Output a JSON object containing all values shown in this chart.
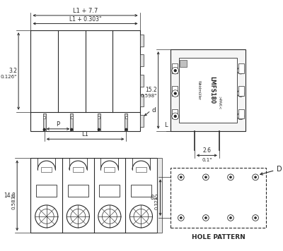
{
  "bg_color": "#ffffff",
  "line_color": "#2a2a2a",
  "top_view": {
    "label_top1": "L1 + 7.7",
    "label_top2": "L1 + 0.303\"",
    "label_left_top": "3.2",
    "label_left_bot": "0.126\"",
    "label_P": "P",
    "label_L1": "L1",
    "label_d": "d"
  },
  "side_view": {
    "label_h1": "15.2",
    "label_h2": "0.598\"",
    "label_w1": "2.6",
    "label_w2": "0.1\"",
    "label_L": "L",
    "brand": "LMFS180"
  },
  "bottom_view": {
    "label_h1": "14.8",
    "label_h2": "0.583\""
  },
  "hole_pattern": {
    "label_h1": "8.2",
    "label_h2": "0.323\"",
    "label_D": "D",
    "title": "HOLE PATTERN"
  }
}
